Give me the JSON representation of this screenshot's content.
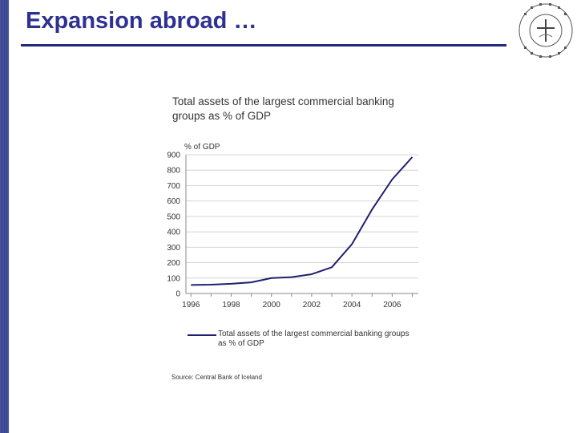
{
  "slide": {
    "title": "Expansion abroad …",
    "accent_color": "#2e3192",
    "seal_icon": "university-seal-icon"
  },
  "chart_data": {
    "type": "line",
    "title": "Total assets of the largest commercial banking groups as % of GDP",
    "ylabel": "% of GDP",
    "xlabel": "",
    "x": [
      1996,
      1997,
      1998,
      1999,
      2000,
      2001,
      2002,
      2003,
      2004,
      2005,
      2006,
      2007
    ],
    "xticks": [
      "1996",
      "1998",
      "2000",
      "2002",
      "2004",
      "2006"
    ],
    "yticks": [
      "0",
      "100",
      "200",
      "300",
      "400",
      "500",
      "600",
      "700",
      "800",
      "900"
    ],
    "ylim": [
      0,
      900
    ],
    "xlim": [
      1995.75,
      2007.3
    ],
    "grid": true,
    "legend_position": "bottom",
    "series": [
      {
        "name": "Total assets of the largest commercial banking groups as % of GDP",
        "color": "#1f1f6e",
        "values": [
          55,
          57,
          63,
          72,
          100,
          106,
          125,
          170,
          320,
          545,
          740,
          885
        ]
      }
    ],
    "source": "Source: Central Bank of Iceland"
  }
}
